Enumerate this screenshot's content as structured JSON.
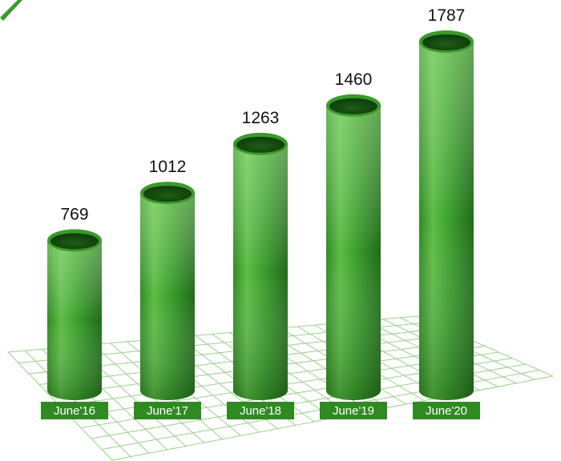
{
  "chart_data": {
    "type": "bar",
    "categories": [
      "June'16",
      "June'17",
      "June'18",
      "June'19",
      "June'20"
    ],
    "values": [
      769,
      1012,
      1263,
      1460,
      1787
    ],
    "color": "#3a9a2a"
  }
}
